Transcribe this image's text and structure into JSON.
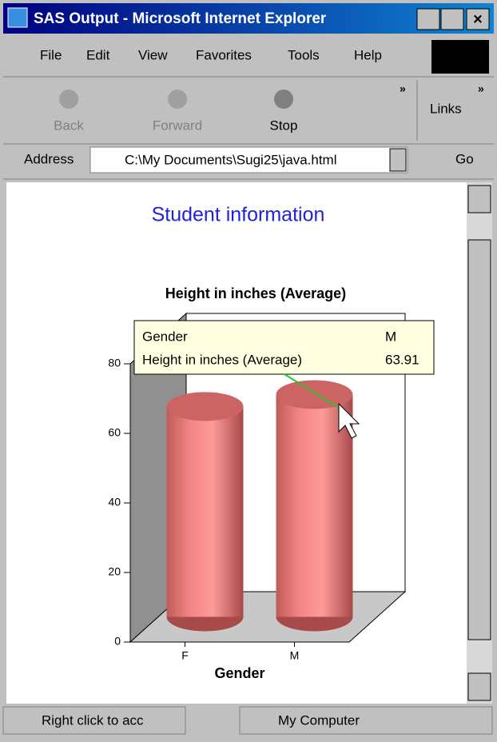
{
  "window": {
    "title": "SAS Output - Microsoft Internet Explorer"
  },
  "menu": [
    "File",
    "Edit",
    "View",
    "Favorites",
    "Tools",
    "Help"
  ],
  "toolbar": [
    "Back",
    "Forward",
    "Stop"
  ],
  "links": "Links",
  "address": {
    "label": "Address",
    "value": "C:\\My Documents\\Sugi25\\java.html",
    "go": "Go"
  },
  "page": {
    "heading": "Student information"
  },
  "chart": {
    "type": "bar",
    "title": "Height in inches (Average)",
    "x_label": "Gender",
    "categories": [
      "F",
      "M"
    ],
    "values": [
      60.5,
      63.91
    ],
    "color": "#f48484",
    "ylim": [
      0,
      80
    ],
    "yticks": [
      0,
      20,
      40,
      60,
      80
    ],
    "tooltip": {
      "category_label": "Gender"
    }
  },
  "status": {
    "message": "Right click to acc",
    "zone": "My Computer"
  }
}
